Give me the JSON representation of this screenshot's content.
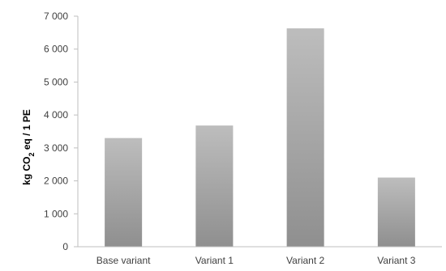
{
  "chart_data": {
    "type": "bar",
    "title": "",
    "xlabel": "",
    "ylabel": {
      "pre": "kg CO",
      "sub": "2",
      "post": " eq / 1 PE"
    },
    "categories": [
      "Base variant",
      "Variant 1",
      "Variant 2",
      "Variant 3"
    ],
    "values": [
      3300,
      3680,
      6630,
      2100
    ],
    "ylim": [
      0,
      7000
    ],
    "yticks": [
      0,
      1000,
      2000,
      3000,
      4000,
      5000,
      6000,
      7000
    ],
    "ytick_labels": [
      "0",
      "1 000",
      "2 000",
      "3 000",
      "4 000",
      "5 000",
      "6 000",
      "7 000"
    ],
    "grid": false,
    "legend": "none",
    "bar_color_top": "#bdbdbd",
    "bar_color_bottom": "#8f8f8f"
  }
}
